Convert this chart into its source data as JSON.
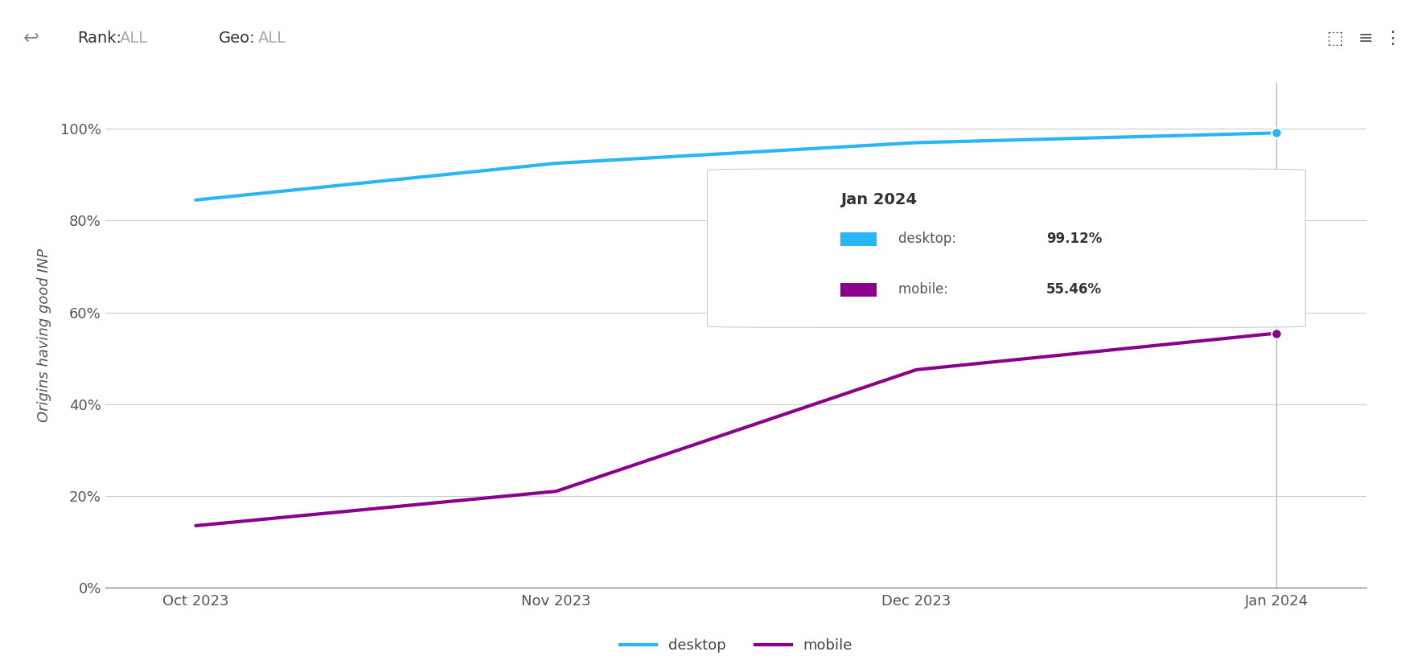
{
  "x_labels": [
    "Oct 2023",
    "Nov 2023",
    "Dec 2023",
    "Jan 2024"
  ],
  "x_values": [
    0,
    1,
    2,
    3
  ],
  "desktop_values": [
    84.5,
    92.5,
    97.0,
    99.12
  ],
  "mobile_values": [
    13.5,
    21.0,
    47.5,
    55.46
  ],
  "desktop_color": "#29B6F6",
  "mobile_color": "#8B008B",
  "ylabel": "Origins having good INP",
  "yticks": [
    0,
    20,
    40,
    60,
    80,
    100
  ],
  "ytick_labels": [
    "0%",
    "20%",
    "40%",
    "60%",
    "80%",
    "100%"
  ],
  "tooltip_title": "Jan 2024",
  "tooltip_desktop_label": "desktop: ",
  "tooltip_desktop_value": "99.12%",
  "tooltip_mobile_label": "mobile: ",
  "tooltip_mobile_value": "55.46%",
  "legend_desktop": "desktop",
  "legend_mobile": "mobile",
  "background_color": "#ffffff",
  "grid_color": "#cccccc",
  "line_width": 3,
  "marker_size": 9,
  "font_color": "#555555",
  "top_bar_bg": "#f5f5f5"
}
